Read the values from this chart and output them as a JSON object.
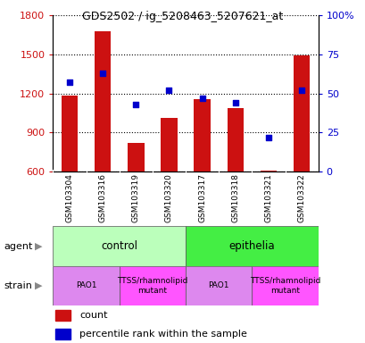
{
  "title": "GDS2502 / ig_5208463_5207621_at",
  "samples": [
    "GSM103304",
    "GSM103316",
    "GSM103319",
    "GSM103320",
    "GSM103317",
    "GSM103318",
    "GSM103321",
    "GSM103322"
  ],
  "counts": [
    1185,
    1680,
    820,
    1010,
    1155,
    1085,
    610,
    1490
  ],
  "percentiles": [
    57,
    63,
    43,
    52,
    47,
    44,
    22,
    52
  ],
  "ylim_left": [
    600,
    1800
  ],
  "ylim_right": [
    0,
    100
  ],
  "yticks_left": [
    600,
    900,
    1200,
    1500,
    1800
  ],
  "yticks_right": [
    0,
    25,
    50,
    75,
    100
  ],
  "ytick_labels_right": [
    "0",
    "25",
    "50",
    "75",
    "100%"
  ],
  "bar_color": "#cc1111",
  "dot_color": "#0000cc",
  "bar_width": 0.5,
  "agent_groups": [
    {
      "text": "control",
      "start": 0,
      "end": 4,
      "color": "#bbffbb"
    },
    {
      "text": "epithelia",
      "start": 4,
      "end": 8,
      "color": "#44ee44"
    }
  ],
  "strain_groups": [
    {
      "text": "PAO1",
      "start": 0,
      "end": 2,
      "color": "#dd88ee"
    },
    {
      "text": "TTSS/rhamnolipid\nmutant",
      "start": 2,
      "end": 4,
      "color": "#ff55ff"
    },
    {
      "text": "PAO1",
      "start": 4,
      "end": 6,
      "color": "#dd88ee"
    },
    {
      "text": "TTSS/rhamnolipid\nmutant",
      "start": 6,
      "end": 8,
      "color": "#ff55ff"
    }
  ],
  "background_color": "#ffffff",
  "sample_box_color": "#cccccc",
  "left_label_color": "#888888"
}
